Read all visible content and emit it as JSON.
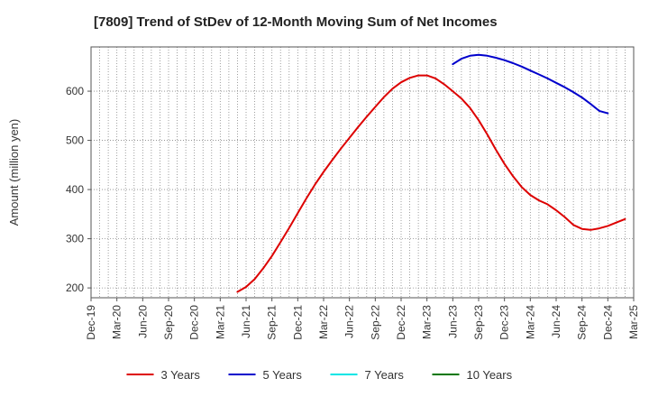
{
  "chart_data": {
    "type": "line",
    "title": "[7809]  Trend of StDev of 12-Month Moving Sum of Net Incomes",
    "ylabel": "Amount (million yen)",
    "xlabel": "",
    "ylim": [
      180,
      690
    ],
    "yticks": [
      200,
      300,
      400,
      500,
      600
    ],
    "x_tick_labels": [
      "Dec-19",
      "Mar-20",
      "Jun-20",
      "Sep-20",
      "Dec-20",
      "Mar-21",
      "Jun-21",
      "Sep-21",
      "Dec-21",
      "Mar-22",
      "Jun-22",
      "Sep-22",
      "Dec-22",
      "Mar-23",
      "Jun-23",
      "Sep-23",
      "Dec-23",
      "Mar-24",
      "Jun-24",
      "Sep-24",
      "Dec-24",
      "Mar-25"
    ],
    "grid": true,
    "legend_position": "bottom",
    "series": [
      {
        "name": "3 Years",
        "color": "#dd0000",
        "points": [
          [
            "May-21",
            192
          ],
          [
            "Jun-21",
            202
          ],
          [
            "Jul-21",
            218
          ],
          [
            "Aug-21",
            240
          ],
          [
            "Sep-21",
            265
          ],
          [
            "Oct-21",
            293
          ],
          [
            "Nov-21",
            322
          ],
          [
            "Dec-21",
            352
          ],
          [
            "Jan-22",
            382
          ],
          [
            "Feb-22",
            410
          ],
          [
            "Mar-22",
            436
          ],
          [
            "Apr-22",
            460
          ],
          [
            "May-22",
            483
          ],
          [
            "Jun-22",
            505
          ],
          [
            "Jul-22",
            527
          ],
          [
            "Aug-22",
            548
          ],
          [
            "Sep-22",
            568
          ],
          [
            "Oct-22",
            588
          ],
          [
            "Nov-22",
            605
          ],
          [
            "Dec-22",
            618
          ],
          [
            "Jan-23",
            627
          ],
          [
            "Feb-23",
            632
          ],
          [
            "Mar-23",
            632
          ],
          [
            "Apr-23",
            626
          ],
          [
            "May-23",
            614
          ],
          [
            "Jun-23",
            600
          ],
          [
            "Jul-23",
            585
          ],
          [
            "Aug-23",
            566
          ],
          [
            "Sep-23",
            541
          ],
          [
            "Oct-23",
            512
          ],
          [
            "Nov-23",
            481
          ],
          [
            "Dec-23",
            452
          ],
          [
            "Jan-24",
            427
          ],
          [
            "Feb-24",
            405
          ],
          [
            "Mar-24",
            389
          ],
          [
            "Apr-24",
            378
          ],
          [
            "May-24",
            370
          ],
          [
            "Jun-24",
            358
          ],
          [
            "Jul-24",
            344
          ],
          [
            "Aug-24",
            328
          ],
          [
            "Sep-24",
            320
          ],
          [
            "Oct-24",
            318
          ],
          [
            "Nov-24",
            321
          ],
          [
            "Dec-24",
            326
          ],
          [
            "Jan-25",
            333
          ],
          [
            "Feb-25",
            340
          ]
        ]
      },
      {
        "name": "5 Years",
        "color": "#0000cc",
        "points": [
          [
            "Jun-23",
            655
          ],
          [
            "Jul-23",
            666
          ],
          [
            "Aug-23",
            672
          ],
          [
            "Sep-23",
            674
          ],
          [
            "Oct-23",
            672
          ],
          [
            "Nov-23",
            668
          ],
          [
            "Dec-23",
            663
          ],
          [
            "Jan-24",
            657
          ],
          [
            "Feb-24",
            650
          ],
          [
            "Mar-24",
            642
          ],
          [
            "Apr-24",
            634
          ],
          [
            "May-24",
            626
          ],
          [
            "Jun-24",
            617
          ],
          [
            "Jul-24",
            608
          ],
          [
            "Aug-24",
            598
          ],
          [
            "Sep-24",
            587
          ],
          [
            "Oct-24",
            574
          ],
          [
            "Nov-24",
            560
          ],
          [
            "Dec-24",
            555
          ]
        ]
      },
      {
        "name": "7 Years",
        "color": "#00e5e5",
        "points": []
      },
      {
        "name": "10 Years",
        "color": "#007700",
        "points": []
      }
    ]
  }
}
